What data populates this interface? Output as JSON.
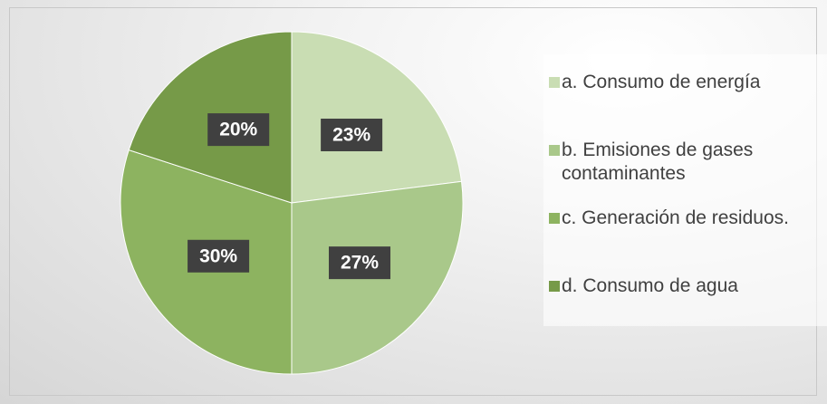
{
  "chart_data": {
    "type": "pie",
    "categories": [
      "a. Consumo de energía",
      "b. Emisiones de gases contaminantes",
      "c. Generación de residuos.",
      "d. Consumo de agua"
    ],
    "values": [
      23,
      27,
      30,
      20
    ],
    "value_labels": [
      "23%",
      "27%",
      "30%",
      "20%"
    ],
    "colors": [
      "#c9ddb3",
      "#a9c88a",
      "#8db360",
      "#769a48"
    ],
    "legend": "right"
  }
}
